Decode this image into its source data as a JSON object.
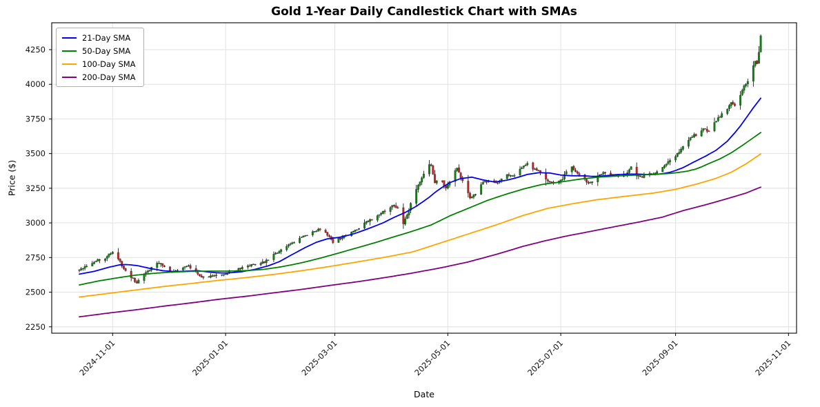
{
  "chart_data": {
    "type": "candlestick",
    "title": "Gold 1-Year Daily Candlestick Chart with SMAs",
    "xlabel": "Date",
    "ylabel": "Price ($)",
    "start_date": "2024-10-14",
    "end_date": "2025-10-17",
    "ylim": [
      2204,
      4444
    ],
    "y_ticks": [
      2250,
      2500,
      2750,
      3000,
      3250,
      3500,
      3750,
      4000,
      4250
    ],
    "x_ticks": [
      {
        "label": "2024-11-01",
        "t": 18
      },
      {
        "label": "2025-01-01",
        "t": 79
      },
      {
        "label": "2025-03-01",
        "t": 138
      },
      {
        "label": "2025-05-01",
        "t": 199
      },
      {
        "label": "2025-07-01",
        "t": 260
      },
      {
        "label": "2025-09-01",
        "t": 322
      },
      {
        "label": "2025-11-01",
        "t": 383
      }
    ],
    "legend": [
      {
        "label": "21-Day SMA",
        "color": "#0000ee"
      },
      {
        "label": "50-Day SMA",
        "color": "#008000"
      },
      {
        "label": "100-Day SMA",
        "color": "#ffa500"
      },
      {
        "label": "200-Day SMA",
        "color": "#800080"
      }
    ],
    "colors": {
      "up_candle": "#118011",
      "down_candle": "#c02424",
      "wick": "#000000",
      "grid": "#dedede",
      "axis": "#000000",
      "tick_text": "#111111"
    },
    "close_keypoints": [
      [
        0,
        2660
      ],
      [
        3,
        2685
      ],
      [
        6,
        2705
      ],
      [
        10,
        2730
      ],
      [
        13,
        2718
      ],
      [
        16,
        2780
      ],
      [
        18,
        2788
      ],
      [
        21,
        2745
      ],
      [
        24,
        2665
      ],
      [
        27,
        2625
      ],
      [
        31,
        2568
      ],
      [
        34,
        2615
      ],
      [
        38,
        2662
      ],
      [
        41,
        2700
      ],
      [
        44,
        2708
      ],
      [
        47,
        2660
      ],
      [
        50,
        2645
      ],
      [
        54,
        2665
      ],
      [
        58,
        2692
      ],
      [
        62,
        2665
      ],
      [
        66,
        2605
      ],
      [
        70,
        2618
      ],
      [
        74,
        2625
      ],
      [
        78,
        2632
      ],
      [
        82,
        2650
      ],
      [
        86,
        2665
      ],
      [
        90,
        2685
      ],
      [
        95,
        2700
      ],
      [
        100,
        2716
      ],
      [
        104,
        2760
      ],
      [
        109,
        2806
      ],
      [
        114,
        2850
      ],
      [
        119,
        2890
      ],
      [
        124,
        2920
      ],
      [
        129,
        2952
      ],
      [
        133,
        2925
      ],
      [
        137,
        2862
      ],
      [
        141,
        2890
      ],
      [
        146,
        2926
      ],
      [
        150,
        2956
      ],
      [
        154,
        2996
      ],
      [
        158,
        3026
      ],
      [
        162,
        3060
      ],
      [
        166,
        3096
      ],
      [
        169,
        3126
      ],
      [
        172,
        3106
      ],
      [
        175,
        2990
      ],
      [
        178,
        3096
      ],
      [
        181,
        3215
      ],
      [
        185,
        3326
      ],
      [
        188,
        3412
      ],
      [
        190,
        3420
      ],
      [
        192,
        3295
      ],
      [
        195,
        3330
      ],
      [
        198,
        3245
      ],
      [
        201,
        3316
      ],
      [
        204,
        3400
      ],
      [
        207,
        3300
      ],
      [
        211,
        3185
      ],
      [
        214,
        3205
      ],
      [
        218,
        3292
      ],
      [
        222,
        3306
      ],
      [
        226,
        3290
      ],
      [
        230,
        3350
      ],
      [
        234,
        3335
      ],
      [
        238,
        3386
      ],
      [
        242,
        3430
      ],
      [
        245,
        3392
      ],
      [
        249,
        3370
      ],
      [
        253,
        3305
      ],
      [
        257,
        3285
      ],
      [
        261,
        3320
      ],
      [
        265,
        3428
      ],
      [
        268,
        3365
      ],
      [
        272,
        3315
      ],
      [
        276,
        3285
      ],
      [
        280,
        3345
      ],
      [
        284,
        3365
      ],
      [
        288,
        3345
      ],
      [
        292,
        3330
      ],
      [
        295,
        3350
      ],
      [
        298,
        3402
      ],
      [
        301,
        3345
      ],
      [
        304,
        3330
      ],
      [
        307,
        3356
      ],
      [
        310,
        3345
      ],
      [
        313,
        3376
      ],
      [
        316,
        3416
      ],
      [
        320,
        3456
      ],
      [
        323,
        3500
      ],
      [
        326,
        3546
      ],
      [
        329,
        3596
      ],
      [
        332,
        3640
      ],
      [
        334,
        3625
      ],
      [
        337,
        3686
      ],
      [
        340,
        3655
      ],
      [
        342,
        3706
      ],
      [
        345,
        3756
      ],
      [
        348,
        3796
      ],
      [
        350,
        3826
      ],
      [
        352,
        3866
      ],
      [
        354,
        3845
      ],
      [
        356,
        3950
      ],
      [
        357,
        3915
      ],
      [
        359,
        3990
      ],
      [
        361,
        4016
      ],
      [
        363,
        4100
      ],
      [
        365,
        4170
      ],
      [
        366,
        4145
      ],
      [
        367,
        4230
      ],
      [
        368,
        4345
      ]
    ],
    "sma_series": [
      {
        "name": "21-Day SMA",
        "color": "#0000ee",
        "points": [
          [
            0,
            2630
          ],
          [
            8,
            2650
          ],
          [
            16,
            2680
          ],
          [
            22,
            2698
          ],
          [
            26,
            2700
          ],
          [
            32,
            2690
          ],
          [
            38,
            2672
          ],
          [
            45,
            2655
          ],
          [
            52,
            2648
          ],
          [
            58,
            2652
          ],
          [
            64,
            2655
          ],
          [
            70,
            2645
          ],
          [
            76,
            2638
          ],
          [
            82,
            2640
          ],
          [
            88,
            2648
          ],
          [
            95,
            2665
          ],
          [
            102,
            2690
          ],
          [
            108,
            2720
          ],
          [
            115,
            2772
          ],
          [
            122,
            2822
          ],
          [
            128,
            2860
          ],
          [
            134,
            2885
          ],
          [
            140,
            2895
          ],
          [
            146,
            2912
          ],
          [
            152,
            2938
          ],
          [
            158,
            2968
          ],
          [
            164,
            3000
          ],
          [
            170,
            3040
          ],
          [
            176,
            3075
          ],
          [
            182,
            3120
          ],
          [
            188,
            3175
          ],
          [
            194,
            3240
          ],
          [
            200,
            3290
          ],
          [
            206,
            3320
          ],
          [
            212,
            3330
          ],
          [
            218,
            3310
          ],
          [
            224,
            3295
          ],
          [
            230,
            3305
          ],
          [
            236,
            3325
          ],
          [
            242,
            3350
          ],
          [
            248,
            3362
          ],
          [
            254,
            3360
          ],
          [
            260,
            3345
          ],
          [
            266,
            3340
          ],
          [
            272,
            3340
          ],
          [
            278,
            3335
          ],
          [
            284,
            3340
          ],
          [
            290,
            3348
          ],
          [
            296,
            3352
          ],
          [
            302,
            3352
          ],
          [
            308,
            3348
          ],
          [
            314,
            3352
          ],
          [
            320,
            3368
          ],
          [
            326,
            3398
          ],
          [
            332,
            3440
          ],
          [
            338,
            3480
          ],
          [
            344,
            3525
          ],
          [
            350,
            3590
          ],
          [
            356,
            3680
          ],
          [
            360,
            3755
          ],
          [
            364,
            3830
          ],
          [
            368,
            3900
          ]
        ]
      },
      {
        "name": "50-Day SMA",
        "color": "#008000",
        "points": [
          [
            0,
            2552
          ],
          [
            10,
            2580
          ],
          [
            20,
            2602
          ],
          [
            30,
            2622
          ],
          [
            40,
            2636
          ],
          [
            50,
            2645
          ],
          [
            60,
            2650
          ],
          [
            70,
            2652
          ],
          [
            80,
            2652
          ],
          [
            90,
            2655
          ],
          [
            100,
            2665
          ],
          [
            110,
            2685
          ],
          [
            120,
            2712
          ],
          [
            130,
            2745
          ],
          [
            140,
            2782
          ],
          [
            150,
            2820
          ],
          [
            160,
            2858
          ],
          [
            170,
            2900
          ],
          [
            180,
            2940
          ],
          [
            190,
            2985
          ],
          [
            200,
            3050
          ],
          [
            210,
            3105
          ],
          [
            220,
            3160
          ],
          [
            230,
            3205
          ],
          [
            240,
            3245
          ],
          [
            250,
            3278
          ],
          [
            260,
            3295
          ],
          [
            270,
            3315
          ],
          [
            280,
            3330
          ],
          [
            290,
            3338
          ],
          [
            300,
            3345
          ],
          [
            310,
            3350
          ],
          [
            320,
            3358
          ],
          [
            328,
            3372
          ],
          [
            334,
            3392
          ],
          [
            340,
            3428
          ],
          [
            346,
            3462
          ],
          [
            352,
            3505
          ],
          [
            358,
            3558
          ],
          [
            363,
            3605
          ],
          [
            368,
            3652
          ]
        ]
      },
      {
        "name": "100-Day SMA",
        "color": "#ffa500",
        "points": [
          [
            0,
            2465
          ],
          [
            15,
            2490
          ],
          [
            30,
            2515
          ],
          [
            45,
            2540
          ],
          [
            60,
            2562
          ],
          [
            75,
            2585
          ],
          [
            90,
            2605
          ],
          [
            105,
            2628
          ],
          [
            120,
            2655
          ],
          [
            135,
            2685
          ],
          [
            150,
            2718
          ],
          [
            165,
            2752
          ],
          [
            180,
            2790
          ],
          [
            195,
            2855
          ],
          [
            210,
            2920
          ],
          [
            225,
            2985
          ],
          [
            240,
            3055
          ],
          [
            253,
            3105
          ],
          [
            265,
            3135
          ],
          [
            280,
            3168
          ],
          [
            295,
            3192
          ],
          [
            310,
            3215
          ],
          [
            322,
            3242
          ],
          [
            334,
            3282
          ],
          [
            344,
            3322
          ],
          [
            352,
            3365
          ],
          [
            360,
            3425
          ],
          [
            368,
            3498
          ]
        ]
      },
      {
        "name": "200-Day SMA",
        "color": "#800080",
        "points": [
          [
            0,
            2322
          ],
          [
            15,
            2348
          ],
          [
            30,
            2372
          ],
          [
            45,
            2398
          ],
          [
            60,
            2422
          ],
          [
            75,
            2448
          ],
          [
            90,
            2470
          ],
          [
            105,
            2495
          ],
          [
            120,
            2520
          ],
          [
            135,
            2548
          ],
          [
            150,
            2575
          ],
          [
            165,
            2605
          ],
          [
            180,
            2638
          ],
          [
            195,
            2675
          ],
          [
            210,
            2718
          ],
          [
            225,
            2772
          ],
          [
            240,
            2832
          ],
          [
            252,
            2872
          ],
          [
            264,
            2908
          ],
          [
            276,
            2938
          ],
          [
            290,
            2975
          ],
          [
            303,
            3008
          ],
          [
            315,
            3042
          ],
          [
            326,
            3088
          ],
          [
            338,
            3130
          ],
          [
            350,
            3175
          ],
          [
            360,
            3215
          ],
          [
            368,
            3258
          ]
        ]
      }
    ]
  }
}
